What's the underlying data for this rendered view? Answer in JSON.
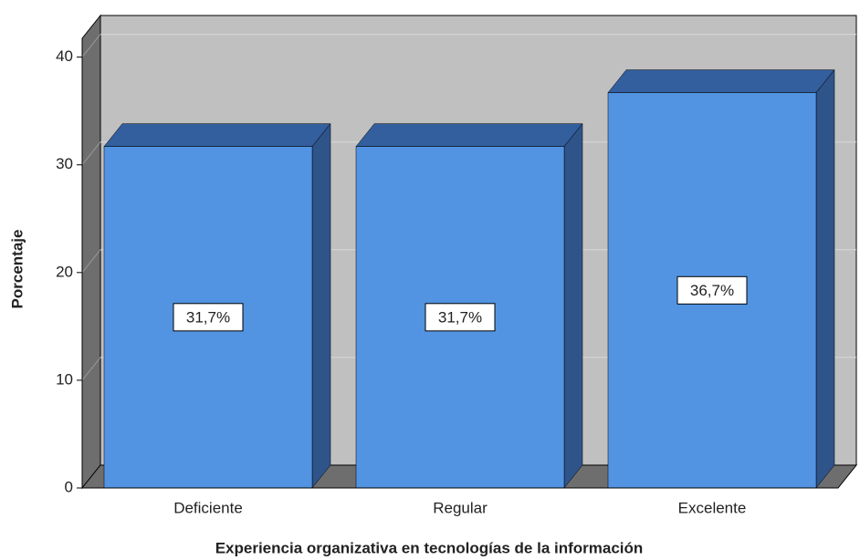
{
  "chart_data": {
    "type": "bar3d",
    "categories": [
      "Deficiente",
      "Regular",
      "Excelente"
    ],
    "values": [
      31.7,
      31.7,
      36.7
    ],
    "value_labels": [
      "31,7%",
      "31,7%",
      "36,7%"
    ],
    "color": "#5294e2",
    "ylim": [
      0,
      42
    ],
    "yticks": [
      0,
      10,
      20,
      30,
      40
    ],
    "grid": true,
    "ylabel": "Porcentaje",
    "xlabel": "Experiencia organizativa en tecnologías de la información"
  }
}
